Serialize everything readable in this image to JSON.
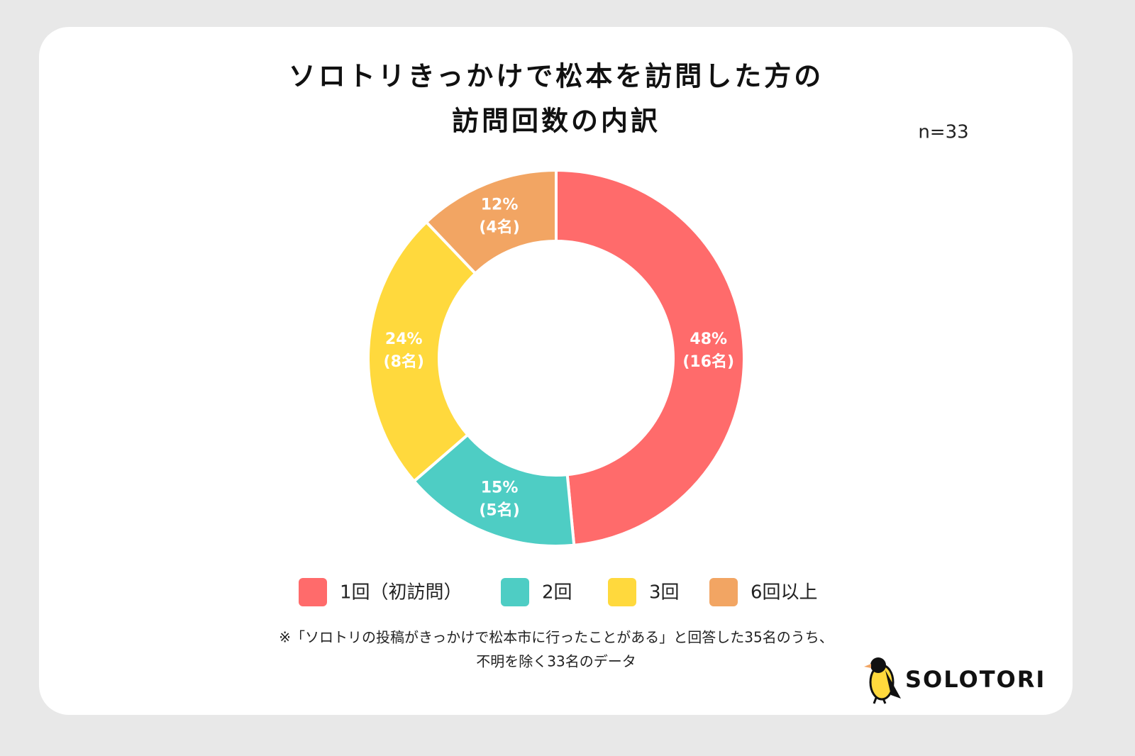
{
  "chart_data": {
    "type": "pie",
    "title_lines": [
      "ソロトリきっかけで松本を訪問した方の",
      "訪問回数の内訳"
    ],
    "sample_note": "n=33",
    "categories": [
      "1回（初訪問）",
      "2回",
      "3回",
      "6回以上"
    ],
    "values": [
      48,
      15,
      24,
      12
    ],
    "value_labels": [
      "48%",
      "15%",
      "24%",
      "12%"
    ],
    "count_labels": [
      "(16名)",
      "(5名)",
      "(8名)",
      "(4名)"
    ],
    "colors": [
      "#ff6b6b",
      "#4ecdc4",
      "#ffd93d",
      "#f2a563"
    ],
    "donut": true,
    "footnote_lines": [
      "※「ソロトリの投稿がきっかけで松本市に行ったことがある」と回答した35名のうち、",
      "不明を除く33名のデータ"
    ],
    "brand": "SOLOTORI"
  }
}
